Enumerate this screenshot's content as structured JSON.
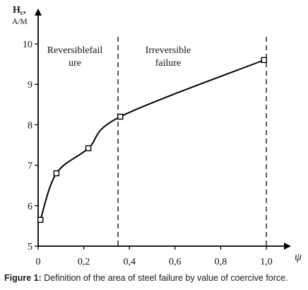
{
  "chart_data": {
    "type": "line",
    "ylabel_symbol": "H",
    "ylabel_subscript": "c",
    "ylabel_suffix": ",",
    "yunit": "A/M",
    "xlabel": "ψ",
    "xlim": [
      0,
      1.1
    ],
    "ylim": [
      5,
      10.3
    ],
    "x_ticks": [
      0,
      0.2,
      0.4,
      0.6,
      0.8,
      1.0
    ],
    "x_tick_labels": [
      "0",
      "0,2",
      "0,4",
      "0,6",
      "0,8",
      "1,0"
    ],
    "y_ticks": [
      5,
      6,
      7,
      8,
      9,
      10
    ],
    "y_tick_labels": [
      "5",
      "6",
      "7",
      "8",
      "9",
      "10"
    ],
    "grid": false,
    "series": [
      {
        "values_x": [
          0.01,
          0.08,
          0.22,
          0.36,
          0.99
        ],
        "values_y": [
          5.65,
          6.8,
          7.42,
          8.2,
          9.6
        ],
        "marker": "open-square",
        "color": "#000000"
      }
    ],
    "boundaries": [
      0.35,
      1.0
    ],
    "annotations": {
      "region1_line1": "Reversiblefail",
      "region1_line2": "ure",
      "region2_line1": "Irreversible",
      "region2_line2": "failure"
    }
  },
  "caption": {
    "label": "Figure 1:",
    "text": " Definition of the area of steel failure by value of coercive force."
  }
}
